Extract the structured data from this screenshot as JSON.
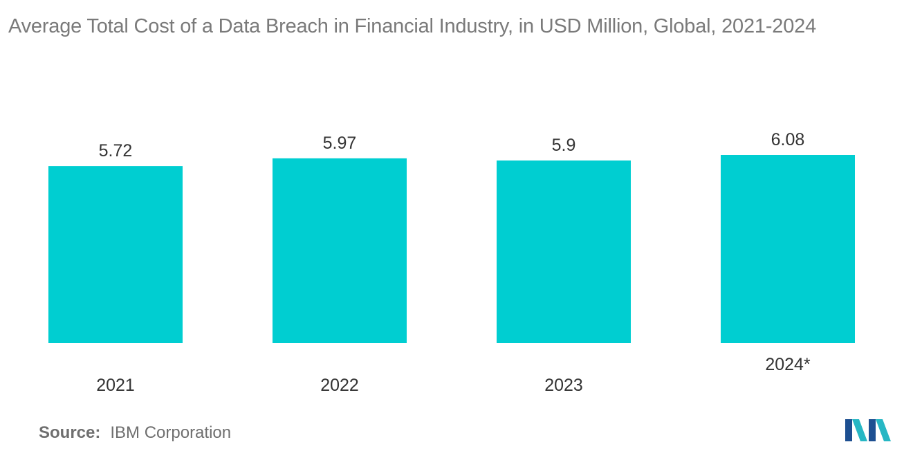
{
  "title": "Average Total Cost of a Data Breach in Financial Industry, in USD Million, Global, 2021-2024",
  "source": {
    "label": "Source:",
    "value": "IBM Corporation"
  },
  "chart_data": {
    "type": "bar",
    "title": "Average Total Cost of a Data Breach in Financial Industry, in USD Million, Global, 2021-2024",
    "categories": [
      "2021",
      "2022",
      "2023",
      "2024*"
    ],
    "values": [
      5.72,
      5.97,
      5.9,
      6.08
    ],
    "data_labels": [
      "5.72",
      "5.97",
      "5.9",
      "6.08"
    ],
    "xlabel": "",
    "ylabel": "",
    "ylim": [
      0,
      6.08
    ],
    "grid": false,
    "legend": "none",
    "colors": {
      "bar": "#00ced1",
      "value_label": "#333333",
      "category_label": "#333333"
    }
  },
  "logo": {
    "icon": "mordor-intelligence-logo-icon",
    "colors": [
      "#1d4f91",
      "#27b7c4"
    ]
  }
}
